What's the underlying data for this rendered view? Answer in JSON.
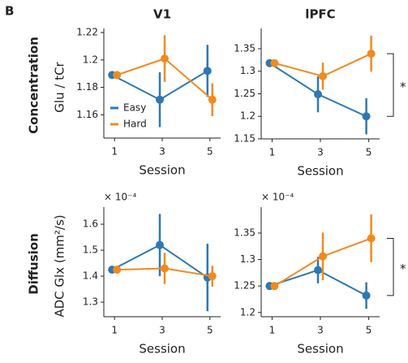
{
  "panel_label": "B",
  "columns": [
    "V1",
    "lPFC"
  ],
  "rows": [
    "Concentration",
    "Diffusion"
  ],
  "chart_data": [
    {
      "type": "line",
      "ylabel": "Glu / tCr",
      "xlabel": "Session",
      "x": [
        1,
        3,
        5
      ],
      "xlim": [
        0.55,
        5.45
      ],
      "xticks": [
        1,
        3,
        5
      ],
      "ylim": [
        1.143,
        1.223
      ],
      "yticks": [
        1.16,
        1.18,
        1.2,
        1.22
      ],
      "legend": "center-left",
      "series": [
        {
          "name": "Easy",
          "color": "#2e78b3",
          "values": [
            1.189,
            1.171,
            1.192
          ],
          "errors": [
            0.001,
            0.02,
            0.019
          ]
        },
        {
          "name": "Hard",
          "color": "#f28a1e",
          "values": [
            1.189,
            1.201,
            1.171
          ],
          "errors": [
            0.001,
            0.017,
            0.012
          ]
        }
      ]
    },
    {
      "type": "line",
      "xlabel": "Session",
      "x": [
        1,
        3,
        5
      ],
      "xlim": [
        0.55,
        5.45
      ],
      "xticks": [
        1,
        3,
        5
      ],
      "ylim": [
        1.15,
        1.395
      ],
      "yticks": [
        1.15,
        1.2,
        1.25,
        1.3,
        1.35
      ],
      "annotation": "*",
      "series": [
        {
          "name": "Easy",
          "color": "#2e78b3",
          "values": [
            1.318,
            1.249,
            1.2
          ],
          "errors": [
            0.002,
            0.04,
            0.04
          ]
        },
        {
          "name": "Hard",
          "color": "#f28a1e",
          "values": [
            1.318,
            1.289,
            1.339
          ],
          "errors": [
            0.002,
            0.03,
            0.04
          ]
        }
      ]
    },
    {
      "type": "line",
      "ylabel": "ADC Glx (mm²/s)",
      "xlabel": "Session",
      "y_scale_label": "× 10⁻⁴",
      "x": [
        1,
        3,
        5
      ],
      "xlim": [
        0.55,
        5.45
      ],
      "xticks": [
        1,
        3,
        5
      ],
      "ylim": [
        1.244,
        1.666
      ],
      "yticks": [
        1.3,
        1.4,
        1.5,
        1.6
      ],
      "series": [
        {
          "name": "Easy",
          "color": "#2e78b3",
          "values": [
            1.425,
            1.52,
            1.395
          ],
          "errors": [
            0.005,
            0.12,
            0.13
          ]
        },
        {
          "name": "Hard",
          "color": "#f28a1e",
          "values": [
            1.425,
            1.43,
            1.4
          ],
          "errors": [
            0.005,
            0.06,
            0.04
          ]
        }
      ]
    },
    {
      "type": "line",
      "xlabel": "Session",
      "y_scale_label": "× 10⁻⁴",
      "x": [
        1,
        3,
        5
      ],
      "xlim": [
        0.55,
        5.45
      ],
      "xticks": [
        1,
        3,
        5
      ],
      "ylim": [
        1.192,
        1.399
      ],
      "yticks": [
        1.2,
        1.25,
        1.3,
        1.35
      ],
      "annotation": "*",
      "series": [
        {
          "name": "Easy",
          "color": "#2e78b3",
          "values": [
            1.25,
            1.28,
            1.232
          ],
          "errors": [
            0.002,
            0.025,
            0.025
          ]
        },
        {
          "name": "Hard",
          "color": "#f28a1e",
          "values": [
            1.25,
            1.306,
            1.34
          ],
          "errors": [
            0.002,
            0.045,
            0.045
          ]
        }
      ]
    }
  ]
}
